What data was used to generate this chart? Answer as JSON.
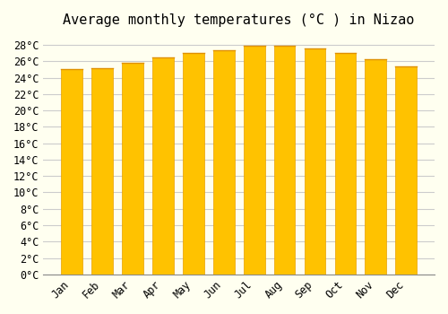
{
  "title": "Average monthly temperatures (°C ) in Nizao",
  "months": [
    "Jan",
    "Feb",
    "Mar",
    "Apr",
    "May",
    "Jun",
    "Jul",
    "Aug",
    "Sep",
    "Oct",
    "Nov",
    "Dec"
  ],
  "values": [
    25.0,
    25.2,
    25.8,
    26.5,
    27.0,
    27.3,
    27.9,
    27.9,
    27.6,
    27.0,
    26.3,
    25.4
  ],
  "bar_color_top": "#FFA500",
  "bar_color_body": "#FFC200",
  "ylim": [
    0,
    29
  ],
  "ytick_step": 2,
  "background_color": "#FFFFF0",
  "grid_color": "#CCCCCC",
  "title_fontsize": 11,
  "tick_fontsize": 8.5,
  "font_family": "monospace"
}
